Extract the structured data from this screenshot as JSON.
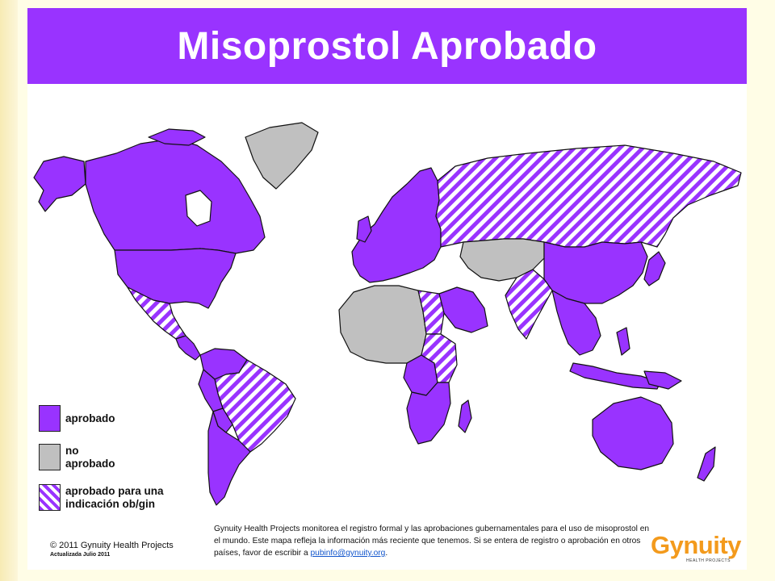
{
  "title": "Misoprostol Aprobado",
  "legend": {
    "approved": "aprobado",
    "not_approved_1": "no",
    "not_approved_2": "aprobado",
    "obgyn_1": "aprobado para una",
    "obgyn_2": "indicación ob/gin"
  },
  "colors": {
    "approved": "#9933FF",
    "not_approved": "#C0C0C0",
    "title_bar": "#9933FF",
    "logo": "#F39A1C"
  },
  "footer": {
    "copyright": "© 2011 Gynuity Health Projects",
    "updated": "Actualizada Julio 2011",
    "note_text": "Gynuity Health Projects monitorea el registro formal y las aprobaciones gubernamentales para el uso de misoprostol en el mundo. Este mapa refleja la información más reciente que tenemos. Si se entera de registro o aprobación en otros países, favor de escribir a",
    "email": "pubinfo@gynuity.org",
    "email_suffix": "."
  },
  "logo": {
    "word": "Gynuity",
    "subtitle": "HEALTH PROJECTS"
  },
  "regions": [
    {
      "name": "Alaska",
      "status": "approved"
    },
    {
      "name": "Canada",
      "status": "approved"
    },
    {
      "name": "Greenland",
      "status": "not_approved"
    },
    {
      "name": "United States",
      "status": "approved"
    },
    {
      "name": "Mexico",
      "status": "obgyn"
    },
    {
      "name": "Central America",
      "status": "approved"
    },
    {
      "name": "Colombia & Venezuela",
      "status": "approved"
    },
    {
      "name": "Brazil",
      "status": "obgyn"
    },
    {
      "name": "Peru",
      "status": "approved"
    },
    {
      "name": "Bolivia",
      "status": "approved"
    },
    {
      "name": "Argentina & Chile",
      "status": "approved"
    },
    {
      "name": "Europe",
      "status": "approved"
    },
    {
      "name": "Russia",
      "status": "obgyn"
    },
    {
      "name": "North & West Africa",
      "status": "not_approved"
    },
    {
      "name": "Egypt",
      "status": "obgyn"
    },
    {
      "name": "Arabian Peninsula",
      "status": "approved"
    },
    {
      "name": "Central Asia",
      "status": "not_approved"
    },
    {
      "name": "India",
      "status": "obgyn"
    },
    {
      "name": "China",
      "status": "approved"
    },
    {
      "name": "Southeast Asia",
      "status": "approved"
    },
    {
      "name": "Japan",
      "status": "approved"
    },
    {
      "name": "Australia",
      "status": "approved"
    },
    {
      "name": "New Zealand",
      "status": "approved"
    },
    {
      "name": "DR Congo",
      "status": "approved"
    },
    {
      "name": "East Africa",
      "status": "obgyn"
    },
    {
      "name": "Southern Africa",
      "status": "approved"
    },
    {
      "name": "Madagascar",
      "status": "approved"
    }
  ]
}
